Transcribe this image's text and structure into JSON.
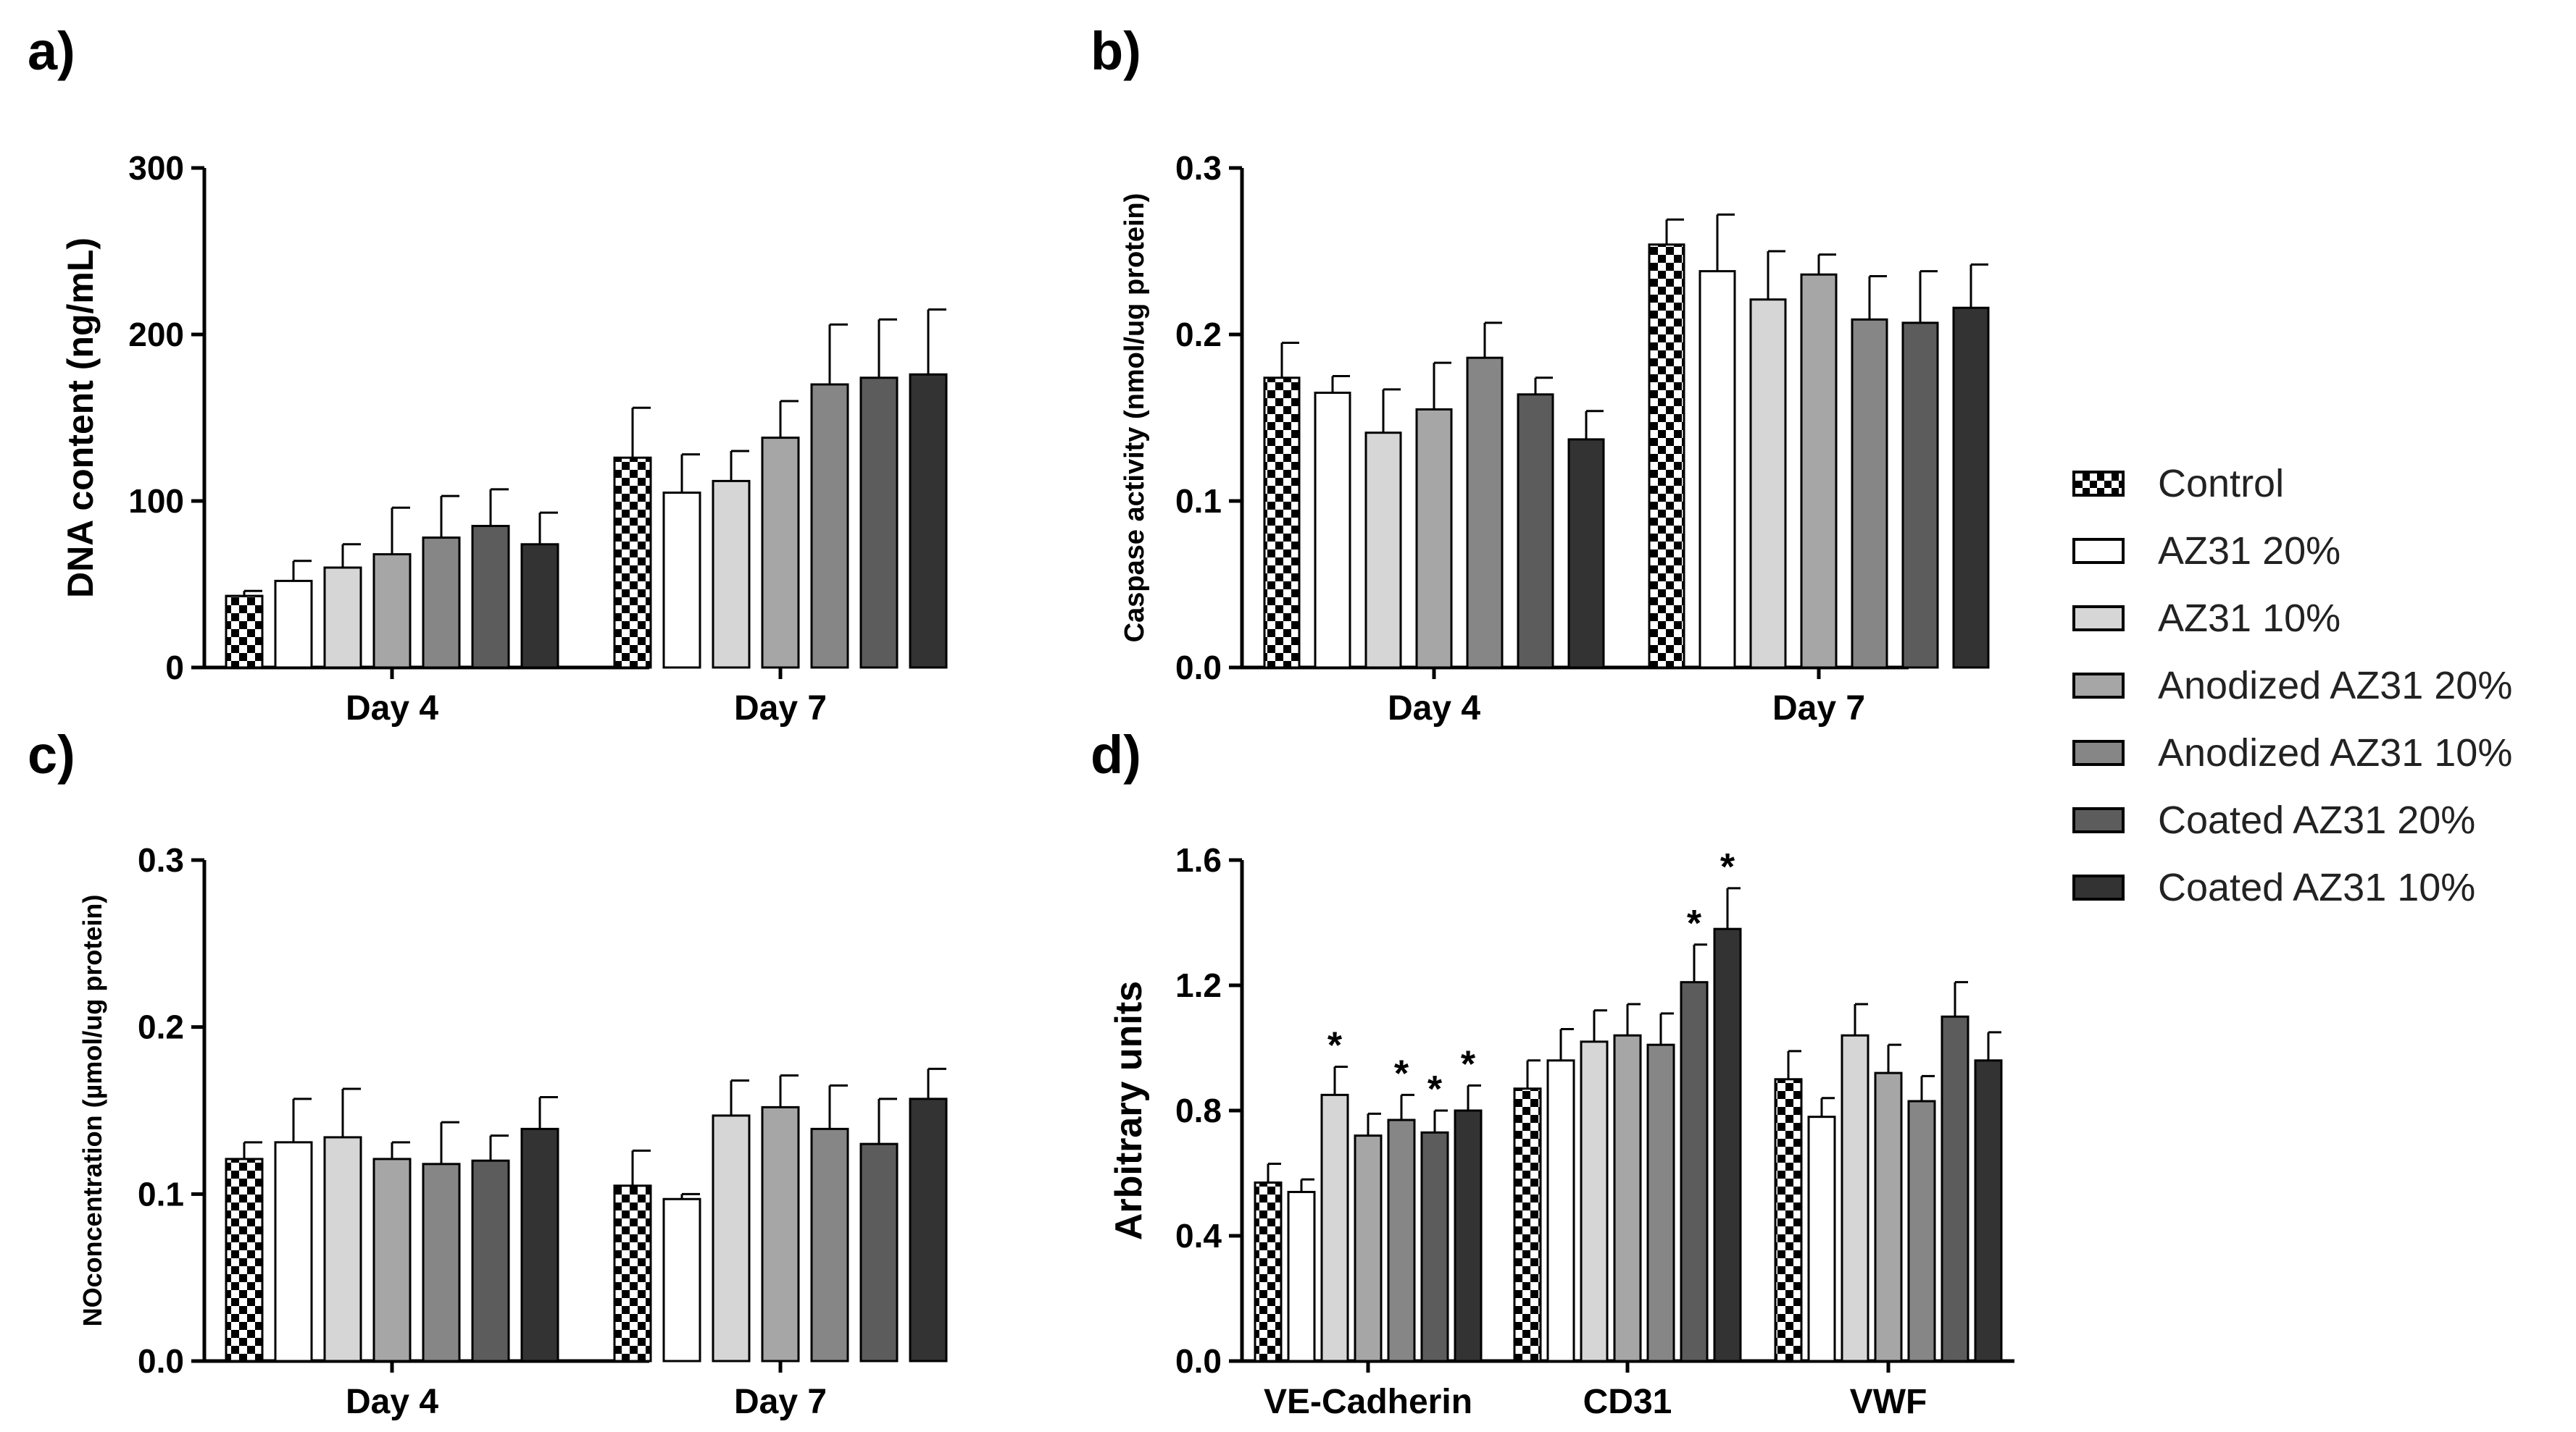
{
  "legend": [
    {
      "name": "Control",
      "fill": "pattern"
    },
    {
      "name": "AZ31 20%",
      "fill": "#ffffff"
    },
    {
      "name": "AZ31 10%",
      "fill": "#d6d6d6"
    },
    {
      "name": "Anodized AZ31 20%",
      "fill": "#a6a6a6"
    },
    {
      "name": "Anodized AZ31 10%",
      "fill": "#868686"
    },
    {
      "name": "Coated AZ31 20%",
      "fill": "#5c5c5c"
    },
    {
      "name": "Coated AZ31 10%",
      "fill": "#333333"
    }
  ],
  "chart_data": [
    {
      "panel": "a)",
      "type": "bar",
      "ylabel": "DNA content (ng/mL)",
      "xlabel": "",
      "ylim": [
        0,
        300
      ],
      "yticks": [
        "0",
        "100",
        "200",
        "300"
      ],
      "categories": [
        "Day 4",
        "Day 7"
      ],
      "series": [
        {
          "name": "Control",
          "values": [
            43,
            126
          ],
          "errors": [
            3,
            30
          ],
          "stars": [
            false,
            false
          ]
        },
        {
          "name": "AZ31 20%",
          "values": [
            52,
            105
          ],
          "errors": [
            12,
            23
          ],
          "stars": [
            false,
            false
          ]
        },
        {
          "name": "AZ31 10%",
          "values": [
            60,
            112
          ],
          "errors": [
            14,
            18
          ],
          "stars": [
            false,
            false
          ]
        },
        {
          "name": "Anodized AZ31 20%",
          "values": [
            68,
            138
          ],
          "errors": [
            28,
            22
          ],
          "stars": [
            false,
            false
          ]
        },
        {
          "name": "Anodized AZ31 10%",
          "values": [
            78,
            170
          ],
          "errors": [
            25,
            36
          ],
          "stars": [
            false,
            false
          ]
        },
        {
          "name": "Coated AZ31 20%",
          "values": [
            85,
            174
          ],
          "errors": [
            22,
            35
          ],
          "stars": [
            false,
            false
          ]
        },
        {
          "name": "Coated AZ31 10%",
          "values": [
            74,
            176
          ],
          "errors": [
            19,
            39
          ],
          "stars": [
            false,
            false
          ]
        }
      ]
    },
    {
      "panel": "b)",
      "type": "bar",
      "ylabel": "Caspase activity (nmol/ug protein)",
      "xlabel": "",
      "ylim": [
        0,
        0.3
      ],
      "yticks": [
        "0.0",
        "0.1",
        "0.2",
        "0.3"
      ],
      "categories": [
        "Day 4",
        "Day 7"
      ],
      "series": [
        {
          "name": "Control",
          "values": [
            0.174,
            0.254
          ],
          "errors": [
            0.021,
            0.015
          ],
          "stars": [
            false,
            false
          ]
        },
        {
          "name": "AZ31 20%",
          "values": [
            0.165,
            0.238
          ],
          "errors": [
            0.01,
            0.034
          ],
          "stars": [
            false,
            false
          ]
        },
        {
          "name": "AZ31 10%",
          "values": [
            0.141,
            0.221
          ],
          "errors": [
            0.026,
            0.029
          ],
          "stars": [
            false,
            false
          ]
        },
        {
          "name": "Anodized AZ31 20%",
          "values": [
            0.155,
            0.236
          ],
          "errors": [
            0.028,
            0.012
          ],
          "stars": [
            false,
            false
          ]
        },
        {
          "name": "Anodized AZ31 10%",
          "values": [
            0.186,
            0.209
          ],
          "errors": [
            0.021,
            0.026
          ],
          "stars": [
            false,
            false
          ]
        },
        {
          "name": "Coated AZ31 20%",
          "values": [
            0.164,
            0.207
          ],
          "errors": [
            0.01,
            0.031
          ],
          "stars": [
            false,
            false
          ]
        },
        {
          "name": "Coated AZ31 10%",
          "values": [
            0.137,
            0.216
          ],
          "errors": [
            0.017,
            0.026
          ],
          "stars": [
            false,
            false
          ]
        }
      ]
    },
    {
      "panel": "c)",
      "type": "bar",
      "ylabel": "NOconcentration (µmol/ug protein)",
      "xlabel": "",
      "ylim": [
        0,
        0.3
      ],
      "yticks": [
        "0.0",
        "0.1",
        "0.2",
        "0.3"
      ],
      "categories": [
        "Day 4",
        "Day 7"
      ],
      "series": [
        {
          "name": "Control",
          "values": [
            0.121,
            0.105
          ],
          "errors": [
            0.01,
            0.021
          ],
          "stars": [
            false,
            false
          ]
        },
        {
          "name": "AZ31 20%",
          "values": [
            0.131,
            0.097
          ],
          "errors": [
            0.026,
            0.003
          ],
          "stars": [
            false,
            false
          ]
        },
        {
          "name": "AZ31 10%",
          "values": [
            0.134,
            0.147
          ],
          "errors": [
            0.029,
            0.021
          ],
          "stars": [
            false,
            false
          ]
        },
        {
          "name": "Anodized AZ31 20%",
          "values": [
            0.121,
            0.152
          ],
          "errors": [
            0.01,
            0.019
          ],
          "stars": [
            false,
            false
          ]
        },
        {
          "name": "Anodized AZ31 10%",
          "values": [
            0.118,
            0.139
          ],
          "errors": [
            0.025,
            0.026
          ],
          "stars": [
            false,
            false
          ]
        },
        {
          "name": "Coated AZ31 20%",
          "values": [
            0.12,
            0.13
          ],
          "errors": [
            0.015,
            0.027
          ],
          "stars": [
            false,
            false
          ]
        },
        {
          "name": "Coated AZ31 10%",
          "values": [
            0.139,
            0.157
          ],
          "errors": [
            0.019,
            0.018
          ],
          "stars": [
            false,
            false
          ]
        }
      ]
    },
    {
      "panel": "d)",
      "type": "bar",
      "ylabel": "Arbitrary units",
      "xlabel": "",
      "ylim": [
        0,
        1.6
      ],
      "yticks": [
        "0.0",
        "0.4",
        "0.8",
        "1.2",
        "1.6"
      ],
      "categories": [
        "VE-Cadherin",
        "CD31",
        "VWF"
      ],
      "series": [
        {
          "name": "Control",
          "values": [
            0.57,
            0.87,
            0.9
          ],
          "errors": [
            0.06,
            0.09,
            0.09
          ],
          "stars": [
            false,
            false,
            false
          ]
        },
        {
          "name": "AZ31 20%",
          "values": [
            0.54,
            0.96,
            0.78
          ],
          "errors": [
            0.04,
            0.1,
            0.06
          ],
          "stars": [
            false,
            false,
            false
          ]
        },
        {
          "name": "AZ31 10%",
          "values": [
            0.85,
            1.02,
            1.04
          ],
          "errors": [
            0.09,
            0.1,
            0.1
          ],
          "stars": [
            true,
            false,
            false
          ]
        },
        {
          "name": "Anodized AZ31 20%",
          "values": [
            0.72,
            1.04,
            0.92
          ],
          "errors": [
            0.07,
            0.1,
            0.09
          ],
          "stars": [
            false,
            false,
            false
          ]
        },
        {
          "name": "Anodized AZ31 10%",
          "values": [
            0.77,
            1.01,
            0.83
          ],
          "errors": [
            0.08,
            0.1,
            0.08
          ],
          "stars": [
            true,
            false,
            false
          ]
        },
        {
          "name": "Coated AZ31 20%",
          "values": [
            0.73,
            1.21,
            1.1
          ],
          "errors": [
            0.07,
            0.12,
            0.11
          ],
          "stars": [
            true,
            true,
            false
          ]
        },
        {
          "name": "Coated AZ31 10%",
          "values": [
            0.8,
            1.38,
            0.96
          ],
          "errors": [
            0.08,
            0.13,
            0.09
          ],
          "stars": [
            true,
            true,
            false
          ]
        }
      ],
      "star_label": "*"
    }
  ]
}
